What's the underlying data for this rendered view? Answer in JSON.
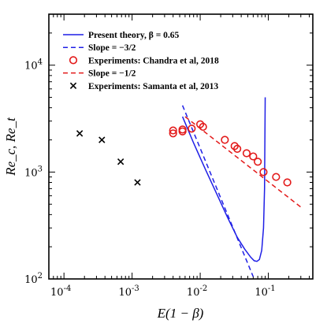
{
  "chart_data": {
    "type": "scatter",
    "xlabel": "E(1 − β)",
    "ylabel": "Re_c, Re_t",
    "xscale": "log",
    "yscale": "log",
    "xlim": [
      6e-05,
      0.45
    ],
    "ylim": [
      100,
      30000
    ],
    "x_ticks": [
      {
        "value": 0.0001,
        "mant": "10",
        "exp": "-4"
      },
      {
        "value": 0.001,
        "mant": "10",
        "exp": "-3"
      },
      {
        "value": 0.01,
        "mant": "10",
        "exp": "-2"
      },
      {
        "value": 0.1,
        "mant": "10",
        "exp": "-1"
      }
    ],
    "y_ticks": [
      {
        "value": 100,
        "mant": "10",
        "exp": "2"
      },
      {
        "value": 1000,
        "mant": "10",
        "exp": "3"
      },
      {
        "value": 10000,
        "mant": "10",
        "exp": "4"
      }
    ],
    "grid": false,
    "legend_position": "top-left",
    "legend": [
      {
        "label": "Present theory, β = 0.65",
        "kind": "solid-line",
        "color": "#1f1fe6"
      },
      {
        "label": "Slope = −3/2",
        "kind": "dashed-line",
        "color": "#1f1fe6"
      },
      {
        "label": "Experiments: Chandra et al, 2018",
        "kind": "circle",
        "color": "#e31a1a"
      },
      {
        "label": "Slope = −1/2",
        "kind": "dashed-line",
        "color": "#e31a1a"
      },
      {
        "label": "Experiments: Samanta et al, 2013",
        "kind": "cross",
        "color": "#000000"
      }
    ],
    "series": [
      {
        "name": "Present theory, β = 0.65",
        "type": "line",
        "style": "solid",
        "color": "#1f1fe6",
        "points": [
          [
            0.0055,
            3300
          ],
          [
            0.008,
            1870
          ],
          [
            0.012,
            1050
          ],
          [
            0.018,
            600
          ],
          [
            0.025,
            380
          ],
          [
            0.035,
            245
          ],
          [
            0.045,
            190
          ],
          [
            0.055,
            160
          ],
          [
            0.062,
            148
          ],
          [
            0.068,
            146
          ],
          [
            0.074,
            152
          ],
          [
            0.08,
            185
          ],
          [
            0.085,
            300
          ],
          [
            0.088,
            700
          ],
          [
            0.09,
            5000
          ]
        ]
      },
      {
        "name": "Slope = −3/2",
        "type": "line",
        "style": "dashed",
        "color": "#1f1fe6",
        "points": [
          [
            0.0055,
            4200
          ],
          [
            0.06,
            105
          ]
        ]
      },
      {
        "name": "Experiments: Chandra et al, 2018",
        "type": "scatter",
        "marker": "circle",
        "color": "#e31a1a",
        "points": [
          [
            0.004,
            2450
          ],
          [
            0.004,
            2300
          ],
          [
            0.0055,
            2500
          ],
          [
            0.0055,
            2400
          ],
          [
            0.0075,
            2550
          ],
          [
            0.01,
            2800
          ],
          [
            0.011,
            2650
          ],
          [
            0.023,
            2000
          ],
          [
            0.032,
            1750
          ],
          [
            0.035,
            1650
          ],
          [
            0.048,
            1500
          ],
          [
            0.06,
            1400
          ],
          [
            0.07,
            1250
          ],
          [
            0.085,
            1000
          ],
          [
            0.13,
            900
          ],
          [
            0.19,
            800
          ]
        ]
      },
      {
        "name": "Slope = −1/2",
        "type": "line",
        "style": "dashed",
        "color": "#e31a1a",
        "points": [
          [
            0.006,
            3300
          ],
          [
            0.3,
            470
          ]
        ]
      },
      {
        "name": "Experiments: Samanta et al, 2013",
        "type": "scatter",
        "marker": "cross",
        "color": "#000000",
        "points": [
          [
            0.00017,
            2300
          ],
          [
            0.00036,
            2000
          ],
          [
            0.00068,
            1250
          ],
          [
            0.0012,
            800
          ]
        ]
      }
    ]
  }
}
